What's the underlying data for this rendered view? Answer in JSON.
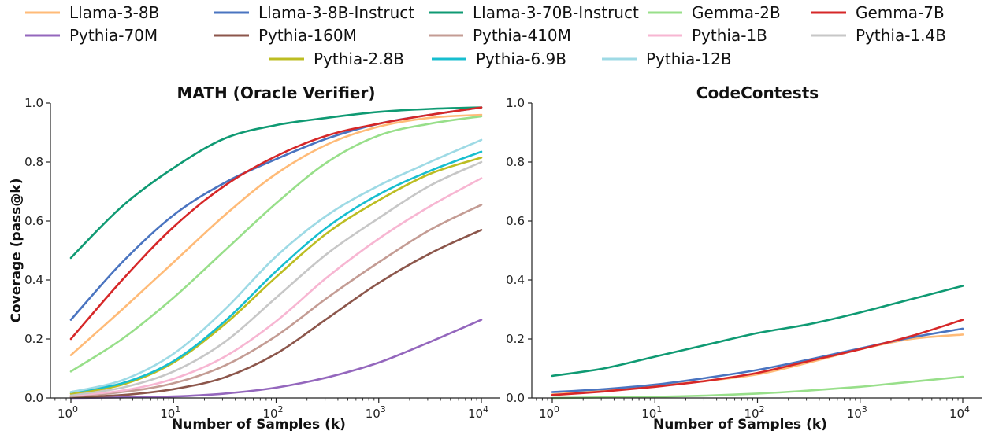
{
  "legend": [
    {
      "name": "Llama-3-8B",
      "color": "#ffbb78"
    },
    {
      "name": "Llama-3-8B-Instruct",
      "color": "#4a74c0"
    },
    {
      "name": "Llama-3-70B-Instruct",
      "color": "#0f9a73"
    },
    {
      "name": "Gemma-2B",
      "color": "#98df8a"
    },
    {
      "name": "Gemma-7B",
      "color": "#d62728"
    },
    {
      "name": "Pythia-70M",
      "color": "#9467bd"
    },
    {
      "name": "Pythia-160M",
      "color": "#8c564b"
    },
    {
      "name": "Pythia-410M",
      "color": "#c49c94"
    },
    {
      "name": "Pythia-1B",
      "color": "#f7b6d2"
    },
    {
      "name": "Pythia-1.4B",
      "color": "#c7c7c7"
    },
    {
      "name": "Pythia-2.8B",
      "color": "#bcbd22"
    },
    {
      "name": "Pythia-6.9B",
      "color": "#17becf"
    },
    {
      "name": "Pythia-12B",
      "color": "#9edae5"
    }
  ],
  "chart_data": [
    {
      "type": "line",
      "title": "MATH (Oracle Verifier)",
      "xlabel": "Number of Samples (k)",
      "ylabel": "Coverage (pass@k)",
      "xscale": "log",
      "xlim": [
        1,
        10000
      ],
      "ylim": [
        0,
        1.0
      ],
      "xticks": [
        {
          "v": 1,
          "e": "0"
        },
        {
          "v": 10,
          "e": "1"
        },
        {
          "v": 100,
          "e": "2"
        },
        {
          "v": 1000,
          "e": "3"
        },
        {
          "v": 10000,
          "e": "4"
        }
      ],
      "yticks": [
        "0.0",
        "0.2",
        "0.4",
        "0.6",
        "0.8",
        "1.0"
      ],
      "x": [
        1,
        3.16,
        10,
        31.6,
        100,
        316,
        1000,
        3160,
        10000
      ],
      "series": [
        {
          "name": "Llama-3-8B",
          "values": [
            0.145,
            0.3,
            0.46,
            0.62,
            0.76,
            0.86,
            0.92,
            0.95,
            0.96
          ]
        },
        {
          "name": "Llama-3-8B-Instruct",
          "values": [
            0.265,
            0.46,
            0.62,
            0.73,
            0.81,
            0.88,
            0.93,
            0.96,
            0.985
          ]
        },
        {
          "name": "Llama-3-70B-Instruct",
          "values": [
            0.475,
            0.65,
            0.78,
            0.88,
            0.925,
            0.95,
            0.97,
            0.98,
            0.985
          ]
        },
        {
          "name": "Gemma-2B",
          "values": [
            0.09,
            0.2,
            0.34,
            0.5,
            0.66,
            0.8,
            0.89,
            0.93,
            0.955
          ]
        },
        {
          "name": "Gemma-7B",
          "values": [
            0.2,
            0.4,
            0.58,
            0.72,
            0.82,
            0.89,
            0.93,
            0.96,
            0.985
          ]
        },
        {
          "name": "Pythia-70M",
          "values": [
            0.0,
            0.002,
            0.005,
            0.015,
            0.035,
            0.07,
            0.12,
            0.19,
            0.265
          ]
        },
        {
          "name": "Pythia-160M",
          "values": [
            0.003,
            0.01,
            0.03,
            0.07,
            0.15,
            0.27,
            0.39,
            0.49,
            0.57
          ]
        },
        {
          "name": "Pythia-410M",
          "values": [
            0.005,
            0.02,
            0.05,
            0.11,
            0.21,
            0.34,
            0.46,
            0.57,
            0.655
          ]
        },
        {
          "name": "Pythia-1B",
          "values": [
            0.008,
            0.025,
            0.065,
            0.14,
            0.26,
            0.41,
            0.54,
            0.65,
            0.745
          ]
        },
        {
          "name": "Pythia-1.4B",
          "values": [
            0.01,
            0.035,
            0.09,
            0.19,
            0.34,
            0.49,
            0.61,
            0.72,
            0.8
          ]
        },
        {
          "name": "Pythia-2.8B",
          "values": [
            0.015,
            0.045,
            0.12,
            0.25,
            0.41,
            0.56,
            0.67,
            0.76,
            0.815
          ]
        },
        {
          "name": "Pythia-6.9B",
          "values": [
            0.02,
            0.05,
            0.125,
            0.26,
            0.43,
            0.58,
            0.69,
            0.77,
            0.835
          ]
        },
        {
          "name": "Pythia-12B",
          "values": [
            0.02,
            0.06,
            0.15,
            0.3,
            0.48,
            0.62,
            0.72,
            0.8,
            0.875
          ]
        }
      ]
    },
    {
      "type": "line",
      "title": "CodeContests",
      "xlabel": "Number of Samples (k)",
      "ylabel": "",
      "xscale": "log",
      "xlim": [
        1,
        10000
      ],
      "ylim": [
        0,
        1.0
      ],
      "xticks": [
        {
          "v": 1,
          "e": "0"
        },
        {
          "v": 10,
          "e": "1"
        },
        {
          "v": 100,
          "e": "2"
        },
        {
          "v": 1000,
          "e": "3"
        },
        {
          "v": 10000,
          "e": "4"
        }
      ],
      "yticks": [
        "0.0",
        "0.2",
        "0.4",
        "0.6",
        "0.8",
        "1.0"
      ],
      "x": [
        1,
        3.16,
        10,
        31.6,
        100,
        316,
        1000,
        3160,
        10000
      ],
      "series": [
        {
          "name": "Llama-3-8B",
          "values": [
            0.012,
            0.025,
            0.04,
            0.058,
            0.08,
            0.12,
            0.165,
            0.2,
            0.215
          ]
        },
        {
          "name": "Llama-3-8B-Instruct",
          "values": [
            0.02,
            0.03,
            0.045,
            0.068,
            0.095,
            0.13,
            0.168,
            0.205,
            0.235
          ]
        },
        {
          "name": "Llama-3-70B-Instruct",
          "values": [
            0.075,
            0.1,
            0.14,
            0.18,
            0.22,
            0.25,
            0.29,
            0.335,
            0.38
          ]
        },
        {
          "name": "Gemma-2B",
          "values": [
            0.0,
            0.002,
            0.004,
            0.008,
            0.015,
            0.025,
            0.038,
            0.055,
            0.072
          ]
        },
        {
          "name": "Gemma-7B",
          "values": [
            0.01,
            0.022,
            0.038,
            0.058,
            0.085,
            0.125,
            0.165,
            0.21,
            0.265
          ]
        }
      ]
    }
  ]
}
